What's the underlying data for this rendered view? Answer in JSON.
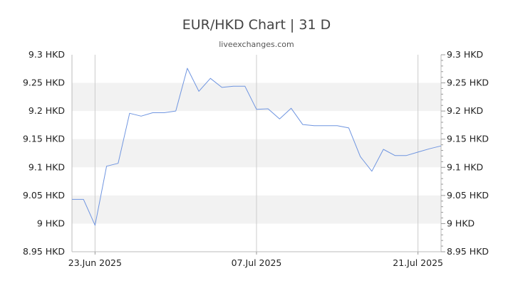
{
  "header": {
    "title": "EUR/HKD Chart | 31 D",
    "source": "liveexchanges.com"
  },
  "chart_data": {
    "type": "line",
    "title": "EUR/HKD Chart | 31 D",
    "subtitle": "liveexchanges.com",
    "x": [
      "2025-06-21",
      "2025-06-22",
      "2025-06-23",
      "2025-06-24",
      "2025-06-25",
      "2025-06-26",
      "2025-06-27",
      "2025-06-28",
      "2025-06-29",
      "2025-06-30",
      "2025-07-01",
      "2025-07-02",
      "2025-07-03",
      "2025-07-04",
      "2025-07-05",
      "2025-07-06",
      "2025-07-07",
      "2025-07-08",
      "2025-07-09",
      "2025-07-10",
      "2025-07-11",
      "2025-07-12",
      "2025-07-13",
      "2025-07-14",
      "2025-07-15",
      "2025-07-16",
      "2025-07-17",
      "2025-07-18",
      "2025-07-19",
      "2025-07-20",
      "2025-07-21",
      "2025-07-22",
      "2025-07-23"
    ],
    "series": [
      {
        "values": [
          9.043,
          9.043,
          8.997,
          9.102,
          9.107,
          9.196,
          9.191,
          9.197,
          9.197,
          9.2,
          9.276,
          9.235,
          9.258,
          9.242,
          9.244,
          9.244,
          9.203,
          9.204,
          9.186,
          9.205,
          9.176,
          9.174,
          9.174,
          9.174,
          9.17,
          9.119,
          9.093,
          9.132,
          9.121,
          9.121,
          9.127,
          9.133,
          9.138
        ],
        "color": "#6f95e0"
      }
    ],
    "x_tick_labels": [
      {
        "date": "2025-06-23",
        "label": "23.Jun 2025"
      },
      {
        "date": "2025-07-07",
        "label": "07.Jul 2025"
      },
      {
        "date": "2025-07-21",
        "label": "21.Jul 2025"
      }
    ],
    "y_tick_labels": [
      "9.3 HKD",
      "9.25 HKD",
      "9.2 HKD",
      "9.15 HKD",
      "9.1 HKD",
      "9.05 HKD",
      "9 HKD",
      "8.95 HKD"
    ],
    "y_ticks": [
      9.3,
      9.25,
      9.2,
      9.15,
      9.1,
      9.05,
      9.0,
      8.95
    ],
    "ylim": [
      8.95,
      9.3
    ],
    "xlim": [
      "2025-06-21",
      "2025-07-23"
    ],
    "grid": true,
    "band_color": "#f2f2f2",
    "axis_color": "#bbbbbb"
  }
}
